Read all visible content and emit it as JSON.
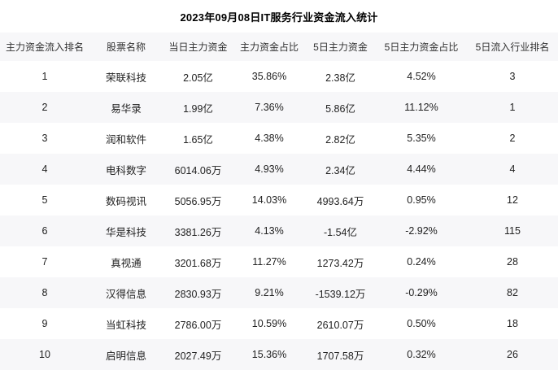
{
  "title": "2023年09月08日IT服务行业资金流入统计",
  "colors": {
    "page_bg": "#ffffff",
    "stripe_bg": "#f7f7f9",
    "header_bg": "#f7f7f9",
    "text": "#222222",
    "title_text": "#000000"
  },
  "chart_data": {
    "type": "table",
    "title": "2023年09月08日IT服务行业资金流入统计",
    "columns": [
      "主力资金流入排名",
      "股票名称",
      "当日主力资金",
      "主力资金占比",
      "5日主力资金",
      "5日主力资金占比",
      "5日流入行业排名"
    ],
    "rows": [
      [
        "1",
        "荣联科技",
        "2.05亿",
        "35.86%",
        "2.38亿",
        "4.52%",
        "3"
      ],
      [
        "2",
        "易华录",
        "1.99亿",
        "7.36%",
        "5.86亿",
        "11.12%",
        "1"
      ],
      [
        "3",
        "润和软件",
        "1.65亿",
        "4.38%",
        "2.82亿",
        "5.35%",
        "2"
      ],
      [
        "4",
        "电科数字",
        "6014.06万",
        "4.93%",
        "2.34亿",
        "4.44%",
        "4"
      ],
      [
        "5",
        "数码视讯",
        "5056.95万",
        "14.03%",
        "4993.64万",
        "0.95%",
        "12"
      ],
      [
        "6",
        "华是科技",
        "3381.26万",
        "4.13%",
        "-1.54亿",
        "-2.92%",
        "115"
      ],
      [
        "7",
        "真视通",
        "3201.68万",
        "11.27%",
        "1273.42万",
        "0.24%",
        "28"
      ],
      [
        "8",
        "汉得信息",
        "2830.93万",
        "9.21%",
        "-1539.12万",
        "-0.29%",
        "82"
      ],
      [
        "9",
        "当虹科技",
        "2786.00万",
        "10.59%",
        "2610.07万",
        "0.50%",
        "18"
      ],
      [
        "10",
        "启明信息",
        "2027.49万",
        "15.36%",
        "1707.58万",
        "0.32%",
        "26"
      ]
    ]
  }
}
